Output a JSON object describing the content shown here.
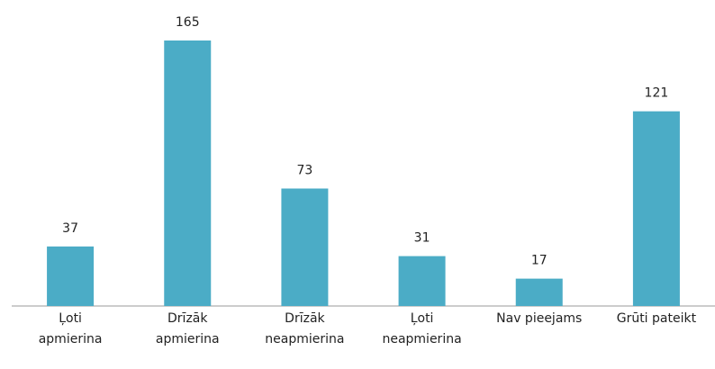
{
  "chart_data": {
    "type": "bar",
    "categories": [
      "Ļoti\napmierina",
      "Drīzāk\napmierina",
      "Drīzāk\nneapmierina",
      "Ļoti\nneapmierina",
      "Nav pieejams",
      "Grūti pateikt"
    ],
    "values": [
      37,
      165,
      73,
      31,
      17,
      121
    ],
    "color": "#4bacc6"
  }
}
